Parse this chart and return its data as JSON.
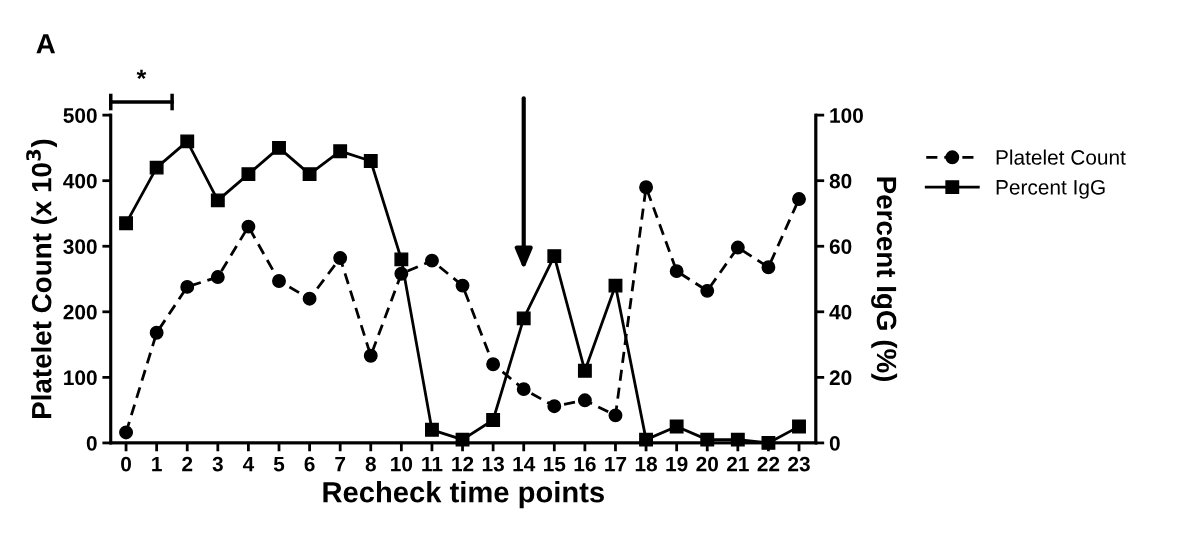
{
  "chart_data": {
    "type": "line",
    "title": "A",
    "xlabel": "Recheck time points",
    "ylabel": "Platelet Count (x 10$^{3}$)",
    "y2label": "Percent IgG (%)",
    "categories": [
      "0",
      "1",
      "2",
      "3",
      "4",
      "5",
      "6",
      "7",
      "8",
      "10",
      "11",
      "12",
      "13",
      "14",
      "15",
      "16",
      "17",
      "18",
      "19",
      "20",
      "21",
      "22",
      "23"
    ],
    "series": [
      {
        "name": "Platelet Count",
        "color": "#000000",
        "marker": "circle",
        "line_style": "dashed",
        "values": [
          16,
          168,
          238,
          253,
          330,
          247,
          220,
          282,
          133,
          258,
          278,
          240,
          120,
          82,
          56,
          65,
          42,
          390,
          262,
          232,
          298,
          268,
          372
        ]
      },
      {
        "name": "Percent IgG",
        "color": "#000000",
        "marker": "square",
        "line_style": "solid",
        "axis": "y2",
        "values": [
          67,
          84,
          92,
          74,
          82,
          90,
          82,
          89,
          86,
          56,
          4,
          1,
          7,
          38,
          57,
          22,
          48,
          1,
          5,
          1,
          1,
          0,
          5
        ]
      }
    ],
    "ylim": [
      0,
      500
    ],
    "yticks": [
      0,
      100,
      200,
      300,
      400,
      500
    ],
    "y2lim": [
      0,
      100
    ],
    "y2ticks": [
      0,
      20,
      40,
      60,
      80,
      100
    ],
    "annotations": [
      "*"
    ],
    "legend": "right",
    "grid": false
  }
}
